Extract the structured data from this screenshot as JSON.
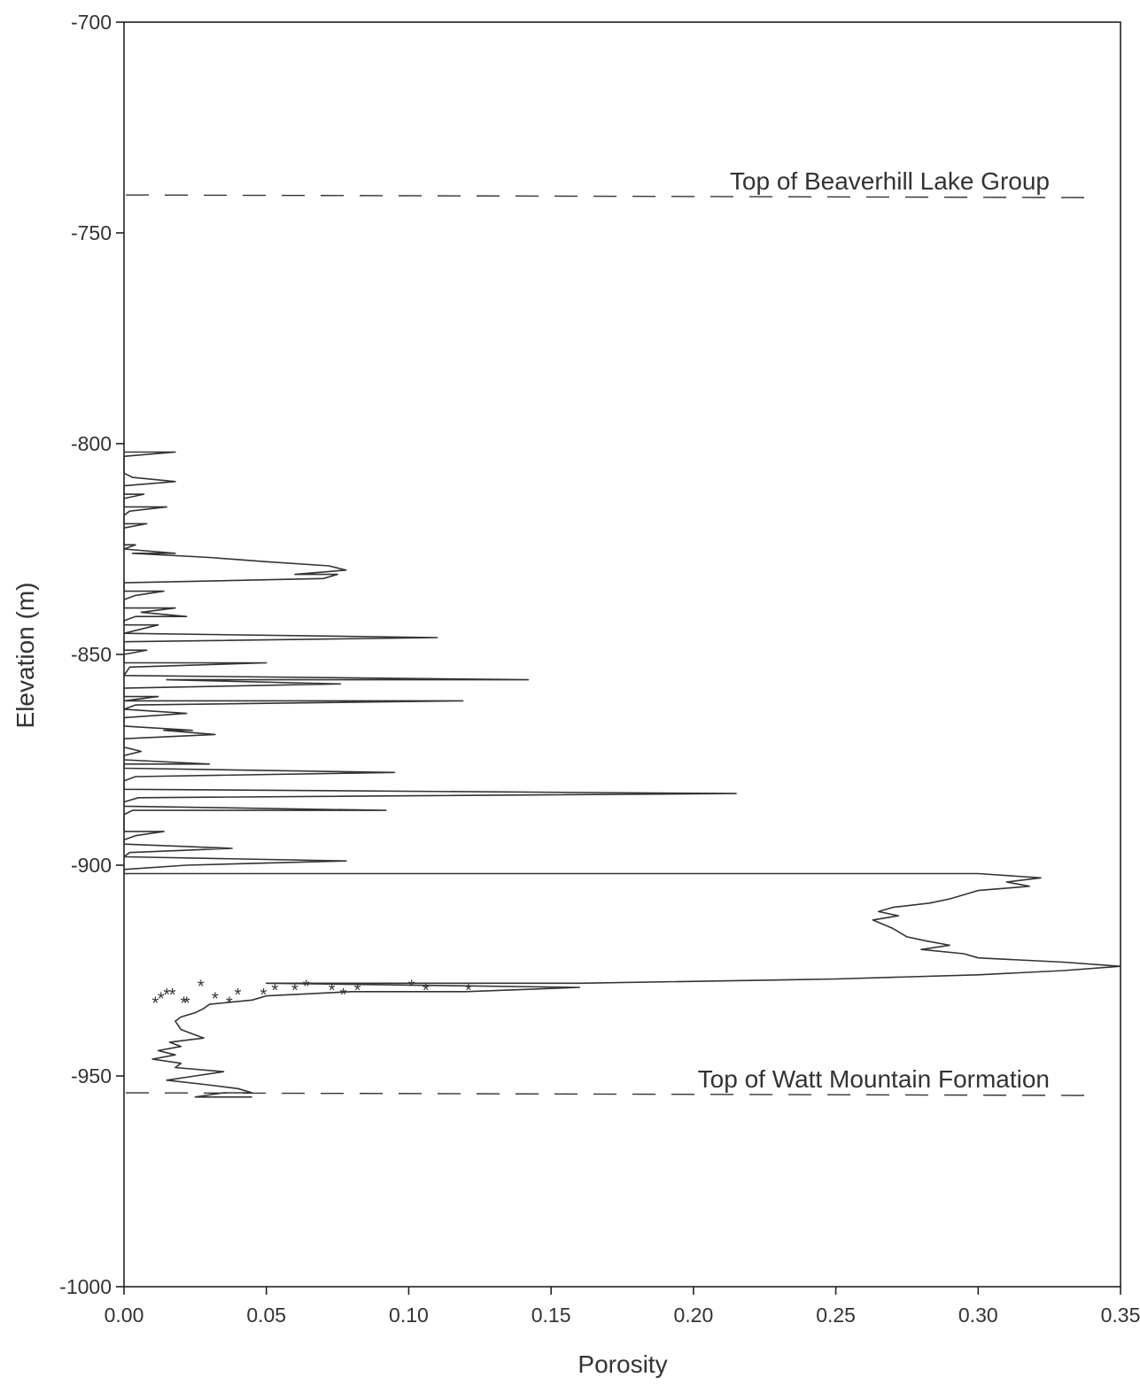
{
  "chart_data": {
    "type": "line",
    "title": "",
    "xlabel": "Porosity",
    "ylabel": "Elevation (m)",
    "xlim": [
      0,
      0.35
    ],
    "ylim": [
      -1000,
      -700
    ],
    "xticks": [
      0.0,
      0.05,
      0.1,
      0.15,
      0.2,
      0.25,
      0.3,
      0.35
    ],
    "xtick_labels": [
      "0.00",
      "0.05",
      "0.10",
      "0.15",
      "0.20",
      "0.25",
      "0.30",
      "0.35"
    ],
    "yticks": [
      -700,
      -750,
      -800,
      -850,
      -900,
      -950,
      -1000
    ],
    "ytick_labels": [
      "-700",
      "-750",
      "-800",
      "-850",
      "-900",
      "-950",
      "-1000"
    ],
    "grid": false,
    "colors": {
      "line": "#333333",
      "axis": "#222222"
    },
    "horizontal_markers": [
      {
        "label": "Top of Beaverhill Lake Group",
        "y": -741,
        "style": "dashed"
      },
      {
        "label": "Top of Watt Mountain Formation",
        "y": -954,
        "style": "dashed"
      }
    ],
    "series": [
      {
        "style": "line",
        "points": [
          [
            0.0,
            -802
          ],
          [
            0.018,
            -802
          ],
          [
            0.0,
            -803
          ],
          [
            0.0,
            -807
          ],
          [
            0.003,
            -808
          ],
          [
            0.018,
            -809
          ],
          [
            0.0,
            -810
          ],
          [
            0.0,
            -812
          ],
          [
            0.007,
            -812
          ],
          [
            0.0,
            -813
          ],
          [
            0.0,
            -815
          ],
          [
            0.015,
            -815
          ],
          [
            0.002,
            -816
          ],
          [
            0.0,
            -817
          ],
          [
            0.0,
            -819
          ],
          [
            0.008,
            -819
          ],
          [
            0.0,
            -820
          ],
          [
            0.0,
            -824
          ],
          [
            0.004,
            -824
          ],
          [
            0.0,
            -825
          ],
          [
            0.018,
            -826
          ],
          [
            0.003,
            -826
          ],
          [
            0.03,
            -827
          ],
          [
            0.05,
            -828
          ],
          [
            0.072,
            -829
          ],
          [
            0.078,
            -830
          ],
          [
            0.06,
            -831
          ],
          [
            0.075,
            -831
          ],
          [
            0.07,
            -832
          ],
          [
            0.0,
            -833
          ],
          [
            0.0,
            -835
          ],
          [
            0.014,
            -835
          ],
          [
            0.004,
            -836
          ],
          [
            0.0,
            -837
          ],
          [
            0.0,
            -839
          ],
          [
            0.018,
            -839
          ],
          [
            0.006,
            -840
          ],
          [
            0.022,
            -841
          ],
          [
            0.004,
            -841
          ],
          [
            0.0,
            -842
          ],
          [
            0.0,
            -843
          ],
          [
            0.012,
            -843
          ],
          [
            0.0,
            -845
          ],
          [
            0.11,
            -846
          ],
          [
            0.0,
            -847
          ],
          [
            0.0,
            -849
          ],
          [
            0.008,
            -849
          ],
          [
            0.0,
            -850
          ],
          [
            0.0,
            -852
          ],
          [
            0.05,
            -852
          ],
          [
            0.002,
            -853
          ],
          [
            0.0,
            -855
          ],
          [
            0.142,
            -856
          ],
          [
            0.015,
            -856
          ],
          [
            0.076,
            -857
          ],
          [
            0.0,
            -858
          ],
          [
            0.0,
            -860
          ],
          [
            0.012,
            -860
          ],
          [
            0.0,
            -861
          ],
          [
            0.119,
            -861
          ],
          [
            0.004,
            -862
          ],
          [
            0.0,
            -863
          ],
          [
            0.022,
            -864
          ],
          [
            0.0,
            -865
          ],
          [
            0.0,
            -867
          ],
          [
            0.024,
            -868
          ],
          [
            0.014,
            -868
          ],
          [
            0.032,
            -869
          ],
          [
            0.0,
            -870
          ],
          [
            0.0,
            -872
          ],
          [
            0.006,
            -873
          ],
          [
            0.0,
            -874
          ],
          [
            0.0,
            -875
          ],
          [
            0.03,
            -876
          ],
          [
            0.0,
            -876
          ],
          [
            0.0,
            -877
          ],
          [
            0.095,
            -878
          ],
          [
            0.004,
            -879
          ],
          [
            0.0,
            -880
          ],
          [
            0.0,
            -882
          ],
          [
            0.215,
            -883
          ],
          [
            0.005,
            -884
          ],
          [
            0.0,
            -885
          ],
          [
            0.0,
            -886
          ],
          [
            0.092,
            -887
          ],
          [
            0.003,
            -887
          ],
          [
            0.0,
            -888
          ],
          [
            0.0,
            -892
          ],
          [
            0.014,
            -892
          ],
          [
            0.004,
            -893
          ],
          [
            0.0,
            -894
          ],
          [
            0.0,
            -895
          ],
          [
            0.038,
            -896
          ],
          [
            0.002,
            -897
          ],
          [
            0.0,
            -898
          ],
          [
            0.078,
            -899
          ],
          [
            0.022,
            -900
          ],
          [
            0.0,
            -901
          ],
          [
            0.0,
            -902
          ],
          [
            0.3,
            -902
          ],
          [
            0.322,
            -903
          ],
          [
            0.31,
            -904
          ],
          [
            0.318,
            -905
          ],
          [
            0.3,
            -906
          ],
          [
            0.29,
            -908
          ],
          [
            0.283,
            -909
          ],
          [
            0.27,
            -910
          ],
          [
            0.265,
            -911
          ],
          [
            0.272,
            -912
          ],
          [
            0.263,
            -913
          ],
          [
            0.27,
            -915
          ],
          [
            0.275,
            -917
          ],
          [
            0.282,
            -918
          ],
          [
            0.29,
            -919
          ],
          [
            0.28,
            -920
          ],
          [
            0.295,
            -921
          ],
          [
            0.3,
            -922
          ],
          [
            0.33,
            -923
          ],
          [
            0.35,
            -924
          ],
          [
            0.33,
            -925
          ],
          [
            0.3,
            -926
          ],
          [
            0.25,
            -927
          ],
          [
            0.16,
            -928
          ],
          [
            0.05,
            -928
          ],
          [
            0.16,
            -929
          ],
          [
            0.12,
            -930
          ],
          [
            0.08,
            -930
          ],
          [
            0.05,
            -931
          ],
          [
            0.045,
            -932
          ],
          [
            0.03,
            -933
          ],
          [
            0.028,
            -934
          ],
          [
            0.025,
            -935
          ],
          [
            0.02,
            -936
          ],
          [
            0.018,
            -937
          ],
          [
            0.02,
            -939
          ],
          [
            0.028,
            -941
          ],
          [
            0.016,
            -942
          ],
          [
            0.02,
            -943
          ],
          [
            0.012,
            -944
          ],
          [
            0.018,
            -945
          ],
          [
            0.01,
            -946
          ],
          [
            0.02,
            -947
          ],
          [
            0.018,
            -948
          ],
          [
            0.035,
            -949
          ],
          [
            0.025,
            -950
          ],
          [
            0.015,
            -951
          ],
          [
            0.028,
            -952
          ],
          [
            0.04,
            -953
          ],
          [
            0.045,
            -954
          ],
          [
            0.035,
            -954
          ],
          [
            0.025,
            -955
          ],
          [
            0.045,
            -955
          ]
        ]
      },
      {
        "style": "asterisk",
        "points": [
          [
            0.011,
            -932
          ],
          [
            0.013,
            -931
          ],
          [
            0.015,
            -930
          ],
          [
            0.017,
            -930
          ],
          [
            0.021,
            -932
          ],
          [
            0.022,
            -932
          ],
          [
            0.027,
            -928
          ],
          [
            0.032,
            -931
          ],
          [
            0.037,
            -932
          ],
          [
            0.04,
            -930
          ],
          [
            0.049,
            -930
          ],
          [
            0.053,
            -929
          ],
          [
            0.06,
            -929
          ],
          [
            0.064,
            -928
          ],
          [
            0.073,
            -929
          ],
          [
            0.077,
            -930
          ],
          [
            0.082,
            -929
          ],
          [
            0.101,
            -928
          ],
          [
            0.106,
            -929
          ],
          [
            0.121,
            -929
          ]
        ]
      }
    ]
  }
}
